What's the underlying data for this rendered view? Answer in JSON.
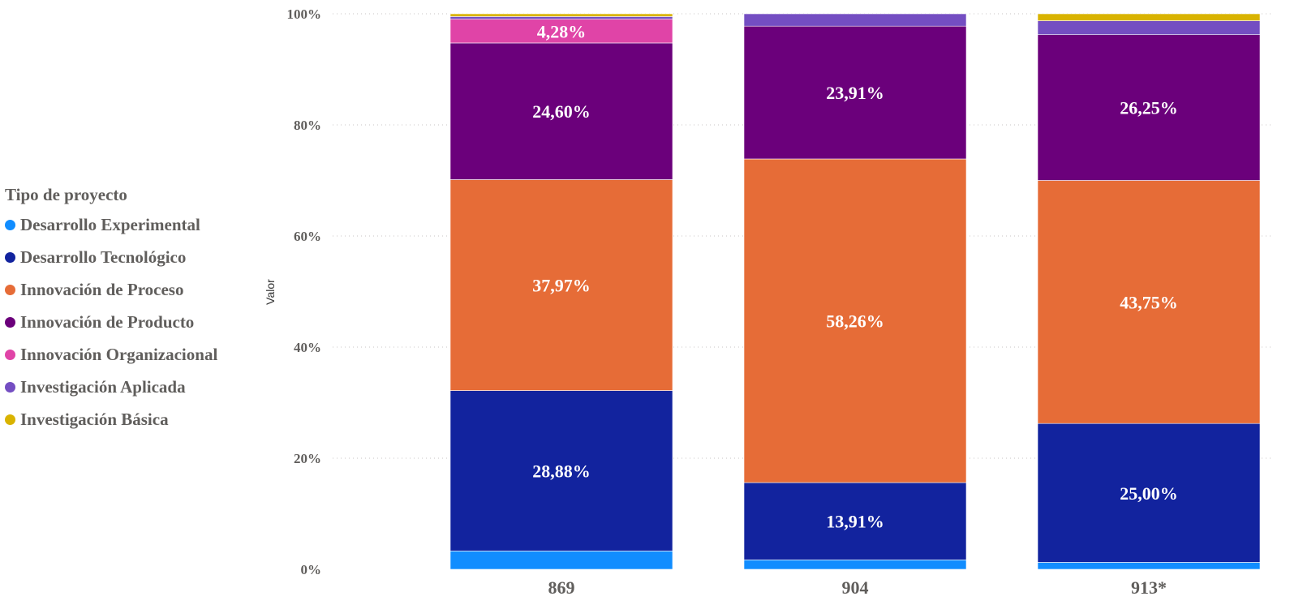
{
  "chart_data": {
    "type": "bar",
    "stacked": true,
    "normalized": true,
    "categories": [
      "869",
      "904",
      "913*"
    ],
    "ylabel": "Valor",
    "xlabel": "",
    "ylim": [
      0,
      100
    ],
    "y_ticks": [
      0,
      20,
      40,
      60,
      80,
      100
    ],
    "y_tick_labels": [
      "0%",
      "20%",
      "40%",
      "60%",
      "80%",
      "100%"
    ],
    "grid": "horizontal-dotted",
    "legend": {
      "title": "Tipo de proyecto",
      "position": "left"
    },
    "series": [
      {
        "name": "Desarrollo Experimental",
        "color": "#118DFF",
        "values": [
          3.3,
          1.7,
          1.25
        ],
        "labels": [
          "",
          "",
          ""
        ]
      },
      {
        "name": "Desarrollo Tecnológico",
        "color": "#12239E",
        "values": [
          28.88,
          13.91,
          25.0
        ],
        "labels": [
          "28,88%",
          "13,91%",
          "25,00%"
        ]
      },
      {
        "name": "Innovación de Proceso",
        "color": "#E66C37",
        "values": [
          37.97,
          58.26,
          43.75
        ],
        "labels": [
          "37,97%",
          "58,26%",
          "43,75%"
        ]
      },
      {
        "name": "Innovación de Producto",
        "color": "#6B007B",
        "values": [
          24.6,
          23.91,
          26.25
        ],
        "labels": [
          "24,60%",
          "23,91%",
          "26,25%"
        ]
      },
      {
        "name": "Innovación Organizacional",
        "color": "#E044A7",
        "values": [
          4.28,
          0,
          0
        ],
        "labels": [
          "4,28%",
          "",
          ""
        ]
      },
      {
        "name": "Investigación Aplicada",
        "color": "#744EC2",
        "values": [
          0.47,
          2.22,
          2.5
        ],
        "labels": [
          "",
          "",
          ""
        ]
      },
      {
        "name": "Investigación Básica",
        "color": "#D9B300",
        "values": [
          0.5,
          0,
          1.25
        ],
        "labels": [
          "",
          "",
          ""
        ]
      }
    ]
  }
}
